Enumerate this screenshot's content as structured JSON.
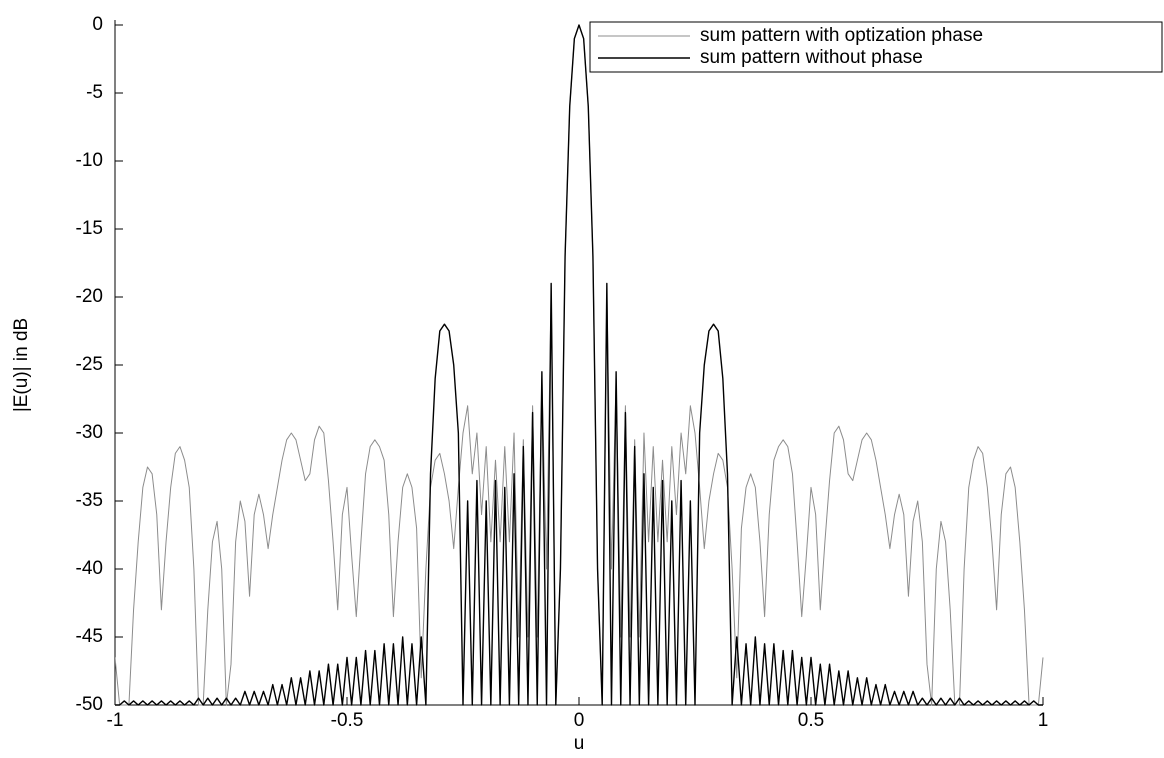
{
  "chart_data": {
    "type": "line",
    "xlabel": "u",
    "ylabel": "|E(u)| in dB",
    "xlim": [
      -1,
      1
    ],
    "ylim": [
      -50,
      0
    ],
    "xticks": [
      -1,
      -0.5,
      0,
      0.5,
      1
    ],
    "yticks": [
      -50,
      -45,
      -40,
      -35,
      -30,
      -25,
      -20,
      -15,
      -10,
      -5,
      0
    ],
    "grid": false,
    "legend": "northeast",
    "x": [
      -1,
      -0.99,
      -0.98,
      -0.97,
      -0.96,
      -0.95,
      -0.94,
      -0.93,
      -0.92,
      -0.91,
      -0.9,
      -0.89,
      -0.88,
      -0.87,
      -0.86,
      -0.85,
      -0.84,
      -0.83,
      -0.82,
      -0.81,
      -0.8,
      -0.79,
      -0.78,
      -0.77,
      -0.76,
      -0.75,
      -0.74,
      -0.73,
      -0.72,
      -0.71,
      -0.7,
      -0.69,
      -0.68,
      -0.67,
      -0.66,
      -0.65,
      -0.64,
      -0.63,
      -0.62,
      -0.61,
      -0.6,
      -0.59,
      -0.58,
      -0.57,
      -0.56,
      -0.55,
      -0.54,
      -0.53,
      -0.52,
      -0.51,
      -0.5,
      -0.49,
      -0.48,
      -0.47,
      -0.46,
      -0.45,
      -0.44,
      -0.43,
      -0.42,
      -0.41,
      -0.4,
      -0.39,
      -0.38,
      -0.37,
      -0.36,
      -0.35,
      -0.34,
      -0.33,
      -0.32,
      -0.31,
      -0.3,
      -0.29,
      -0.28,
      -0.27,
      -0.26,
      -0.25,
      -0.24,
      -0.23,
      -0.22,
      -0.21,
      -0.2,
      -0.19,
      -0.18,
      -0.17,
      -0.16,
      -0.15,
      -0.14,
      -0.13,
      -0.12,
      -0.11,
      -0.1,
      -0.09,
      -0.08,
      -0.07,
      -0.06,
      -0.05,
      -0.04,
      -0.03,
      -0.02,
      -0.01,
      0,
      0.01,
      0.02,
      0.03,
      0.04,
      0.05,
      0.06,
      0.07,
      0.08,
      0.09,
      0.1,
      0.11,
      0.12,
      0.13,
      0.14,
      0.15,
      0.16,
      0.17,
      0.18,
      0.19,
      0.2,
      0.21,
      0.22,
      0.23,
      0.24,
      0.25,
      0.26,
      0.27,
      0.28,
      0.29,
      0.3,
      0.31,
      0.32,
      0.33,
      0.34,
      0.35,
      0.36,
      0.37,
      0.38,
      0.39,
      0.4,
      0.41,
      0.42,
      0.43,
      0.44,
      0.45,
      0.46,
      0.47,
      0.48,
      0.49,
      0.5,
      0.51,
      0.52,
      0.53,
      0.54,
      0.55,
      0.56,
      0.57,
      0.58,
      0.59,
      0.6,
      0.61,
      0.62,
      0.63,
      0.64,
      0.65,
      0.66,
      0.67,
      0.68,
      0.69,
      0.7,
      0.71,
      0.72,
      0.73,
      0.74,
      0.75,
      0.76,
      0.77,
      0.78,
      0.79,
      0.8,
      0.81,
      0.82,
      0.83,
      0.84,
      0.85,
      0.86,
      0.87,
      0.88,
      0.89,
      0.9,
      0.91,
      0.92,
      0.93,
      0.94,
      0.95,
      0.96,
      0.97,
      0.98,
      0.99,
      1
    ],
    "series": [
      {
        "name": "sum pattern with optization phase",
        "color": "#8c8c8c",
        "values": [
          -46.5,
          -50,
          -50,
          -50,
          -43,
          -38,
          -34,
          -32.5,
          -33,
          -36,
          -43,
          -38,
          -34,
          -31.5,
          -31,
          -32,
          -34,
          -40,
          -50,
          -50,
          -43,
          -38,
          -36.5,
          -40,
          -50,
          -47,
          -38,
          -35,
          -36.5,
          -42,
          -36,
          -34.5,
          -36,
          -38.5,
          -36,
          -34,
          -32,
          -30.5,
          -30,
          -30.5,
          -32,
          -33.5,
          -33,
          -30.5,
          -29.5,
          -30,
          -33.5,
          -38,
          -43,
          -36,
          -34,
          -39,
          -43.5,
          -38,
          -33,
          -31,
          -30.5,
          -31,
          -32,
          -36,
          -43.5,
          -38,
          -34,
          -33,
          -34,
          -37,
          -48,
          -40,
          -34,
          -32,
          -31.5,
          -33,
          -35,
          -38.5,
          -34,
          -30,
          -28,
          -33,
          -30,
          -36,
          -31,
          -38,
          -32,
          -38,
          -31,
          -38,
          -30,
          -45,
          -30.5,
          -45,
          -28,
          -45,
          -26,
          -40,
          -19.5,
          -50,
          -40,
          -17,
          -6,
          -1,
          0,
          -1,
          -6,
          -17,
          -40,
          -50,
          -19.5,
          -40,
          -26,
          -45,
          -28,
          -45,
          -30.5,
          -45,
          -30,
          -38,
          -31,
          -38,
          -32,
          -38,
          -31,
          -36,
          -30,
          -33,
          -28,
          -30,
          -34,
          -38.5,
          -35,
          -33,
          -31.5,
          -32,
          -34,
          -40,
          -48,
          -37,
          -34,
          -33,
          -34,
          -38,
          -43.5,
          -36,
          -32,
          -31,
          -30.5,
          -31,
          -33,
          -38,
          -43.5,
          -39,
          -34,
          -36,
          -43,
          -38,
          -33.5,
          -30,
          -29.5,
          -30.5,
          -33,
          -33.5,
          -32,
          -30.5,
          -30,
          -30.5,
          -32,
          -34,
          -36,
          -38.5,
          -36,
          -34.5,
          -36,
          -42,
          -36.5,
          -35,
          -38,
          -47,
          -50,
          -40,
          -36.5,
          -38,
          -43,
          -50,
          -50,
          -40,
          -34,
          -32,
          -31,
          -31.5,
          -34,
          -38,
          -43,
          -36,
          -33,
          -32.5,
          -34,
          -38,
          -43,
          -50,
          -50,
          -50,
          -46.5
        ]
      },
      {
        "name": "sum pattern without phase",
        "color": "#000000",
        "values": [
          -50,
          -50,
          -49.7,
          -50,
          -49.7,
          -50,
          -49.7,
          -50,
          -49.7,
          -50,
          -49.7,
          -50,
          -49.7,
          -50,
          -49.7,
          -50,
          -49.7,
          -50,
          -49.5,
          -50,
          -49.5,
          -50,
          -49.5,
          -50,
          -49.5,
          -50,
          -49.5,
          -50,
          -49,
          -50,
          -49,
          -50,
          -49,
          -50,
          -48.5,
          -50,
          -48.5,
          -50,
          -48,
          -50,
          -48,
          -50,
          -47.5,
          -50,
          -47.5,
          -50,
          -47,
          -50,
          -47,
          -50,
          -46.5,
          -50,
          -46.5,
          -50,
          -46,
          -50,
          -46,
          -50,
          -45.5,
          -50,
          -45.5,
          -50,
          -45,
          -50,
          -45.5,
          -50,
          -45,
          -50,
          -33,
          -26,
          -22.5,
          -22,
          -22.5,
          -25,
          -30,
          -50,
          -35,
          -50,
          -33.5,
          -50,
          -35,
          -50,
          -33.5,
          -50,
          -34,
          -50,
          -33,
          -50,
          -31,
          -50,
          -28.5,
          -50,
          -25.5,
          -50,
          -19,
          -50,
          -40,
          -17,
          -6,
          -1,
          0,
          -1,
          -6,
          -17,
          -40,
          -50,
          -19,
          -50,
          -25.5,
          -50,
          -28.5,
          -50,
          -31,
          -50,
          -33,
          -50,
          -34,
          -50,
          -33.5,
          -50,
          -35,
          -50,
          -33.5,
          -50,
          -35,
          -50,
          -30,
          -25,
          -22.5,
          -22,
          -22.5,
          -26,
          -33,
          -50,
          -45,
          -50,
          -45.5,
          -50,
          -45,
          -50,
          -45.5,
          -50,
          -45.5,
          -50,
          -46,
          -50,
          -46,
          -50,
          -46.5,
          -50,
          -46.5,
          -50,
          -47,
          -50,
          -47,
          -50,
          -47.5,
          -50,
          -47.5,
          -50,
          -48,
          -50,
          -48,
          -50,
          -48.5,
          -50,
          -48.5,
          -50,
          -49,
          -50,
          -49,
          -50,
          -49,
          -50,
          -49.5,
          -50,
          -49.5,
          -50,
          -49.5,
          -50,
          -49.5,
          -50,
          -49.5,
          -50,
          -49.7,
          -50,
          -49.7,
          -50,
          -49.7,
          -50,
          -49.7,
          -50,
          -49.7,
          -50,
          -49.7,
          -50,
          -49.7,
          -50,
          -49.7,
          -50,
          -50
        ]
      }
    ]
  }
}
